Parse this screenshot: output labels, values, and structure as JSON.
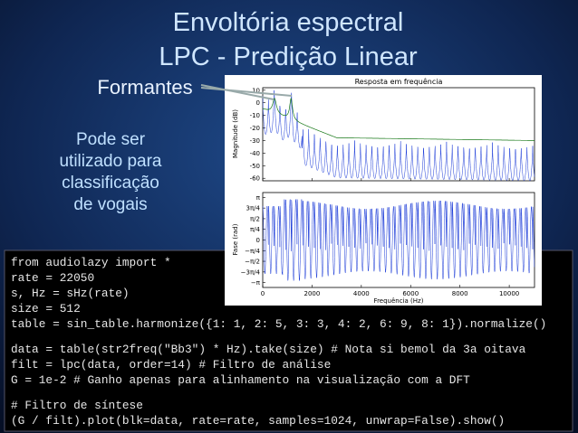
{
  "slide": {
    "title_lines": [
      "Envoltória espectral",
      "LPC - Predição Linear"
    ],
    "formantes": "Formantes",
    "note_lines": [
      "Pode ser",
      "utilizado para",
      "classificação",
      "de vogais"
    ]
  },
  "plot": {
    "title": "Resposta em frequência",
    "mag_ylabel": "Magnitude (dB)",
    "phase_ylabel": "Fase (rad)",
    "xlabel": "Frequência (Hz)",
    "xlim": [
      0,
      11025
    ],
    "xticks": [
      0,
      2000,
      4000,
      6000,
      8000,
      10000
    ],
    "mag_ylim": [
      -62,
      12
    ],
    "mag_yticks": [
      10,
      0,
      -10,
      -20,
      -30,
      -40,
      -50,
      -60
    ],
    "phase_ylim": [
      -3.5,
      3.5
    ],
    "phase_yticks": [
      {
        "value": 3.1416,
        "label": "π"
      },
      {
        "value": 2.3562,
        "label": "3π/4"
      },
      {
        "value": 1.5708,
        "label": "π/2"
      },
      {
        "value": 0.7854,
        "label": "π/4"
      },
      {
        "value": 0,
        "label": "0"
      },
      {
        "value": -0.7854,
        "label": "−π/4"
      },
      {
        "value": -1.5708,
        "label": "−π/2"
      },
      {
        "value": -2.3562,
        "label": "−3π/4"
      },
      {
        "value": -3.1416,
        "label": "−π"
      }
    ]
  },
  "code": [
    [
      "from audiolazy import *"
    ],
    [
      "rate = 22050",
      "s, Hz = sHz(rate)",
      "size = 512",
      "table = sin_table.harmonize({1: 1, 2: 5, 3: 3, 4: 2, 6: 9, 8: 1}).normalize()"
    ],
    [
      "data = table(str2freq(\"Bb3\") * Hz).take(size) # Nota si bemol da 3a oitava",
      "filt = lpc(data, order=14) # Filtro de análise",
      "G = 1e-2 # Ganho apenas para alinhamento na visualização com a DFT"
    ],
    [
      "# Filtro de síntese",
      "(G / filt).plot(blk=data, rate=rate, samples=1024, unwrap=False).show()"
    ]
  ]
}
